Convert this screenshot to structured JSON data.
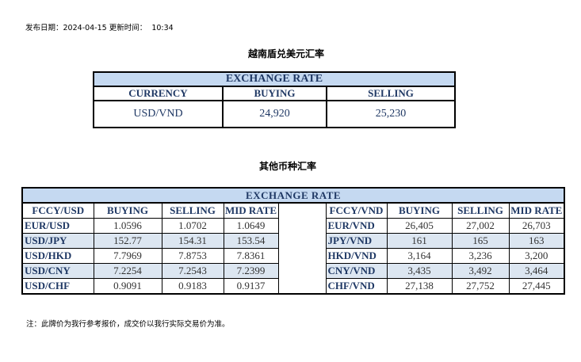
{
  "publish": {
    "date_label": "发布日期：",
    "date": "2024-04-15",
    "time_label": "更新时间：",
    "time": "10:34"
  },
  "usd_section": {
    "title": "越南盾兑美元汇率",
    "table_title": "EXCHANGE RATE",
    "headers": [
      "CURRENCY",
      "BUYING",
      "SELLING"
    ],
    "row": {
      "currency": "USD/VND",
      "buying": "24,920",
      "selling": "25,230"
    }
  },
  "other_section": {
    "title": "其他币种汇率",
    "table_title": "EXCHANGE  RATE",
    "usd_headers": [
      "FCCY/USD",
      "BUYING",
      "SELLING",
      "MID RATE"
    ],
    "vnd_headers": [
      "FCCY/VND",
      "BUYING",
      "SELLING",
      "MID RATE"
    ],
    "usd_rows": [
      [
        "EUR/USD",
        "1.0596",
        "1.0702",
        "1.0649"
      ],
      [
        "USD/JPY",
        "152.77",
        "154.31",
        "153.54"
      ],
      [
        "USD/HKD",
        "7.7969",
        "7.8753",
        "7.8361"
      ],
      [
        "USD/CNY",
        "7.2254",
        "7.2543",
        "7.2399"
      ],
      [
        "USD/CHF",
        "0.9091",
        "0.9183",
        "0.9137"
      ]
    ],
    "vnd_rows": [
      [
        "EUR/VND",
        "26,405",
        "27,002",
        "26,703"
      ],
      [
        "JPY/VND",
        "161",
        "165",
        "163"
      ],
      [
        "HKD/VND",
        "3,164",
        "3,236",
        "3,200"
      ],
      [
        "CNY/VND",
        "3,435",
        "3,492",
        "3,464"
      ],
      [
        "CHF/VND",
        "27,138",
        "27,752",
        "27,445"
      ]
    ]
  },
  "note": "注：此牌价为我行参考报价，成交价以我行实际交易价为准。",
  "colors": {
    "title_bg": "#c5d9f1",
    "alt_row": "#dce6f1",
    "header_text": "#1f3864"
  }
}
